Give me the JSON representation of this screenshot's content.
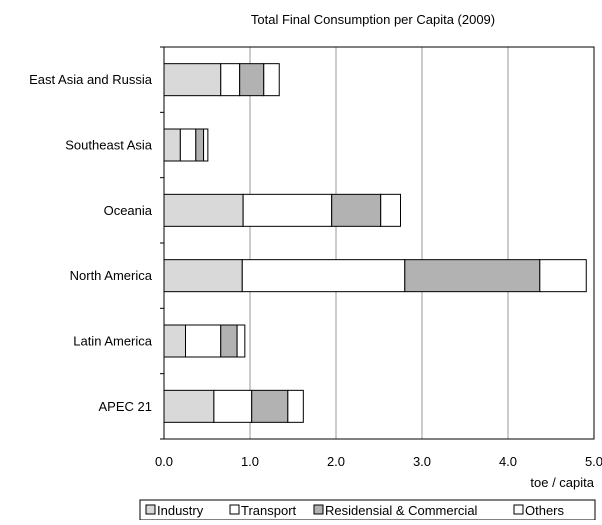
{
  "chart_data": {
    "type": "bar",
    "orientation": "horizontal",
    "stacked": true,
    "title": "Total Final Consumption per Capita (2009)",
    "xlabel": "toe / capita",
    "ylabel": "",
    "xlim": [
      0,
      5
    ],
    "x_ticks": [
      "0.0",
      "1.0",
      "2.0",
      "3.0",
      "4.0",
      "5.0"
    ],
    "grid": "vertical",
    "legend": "bottom",
    "categories": [
      "East Asia and Russia",
      "Southeast Asia",
      "Oceania",
      "North America",
      "Latin America",
      "APEC 21"
    ],
    "series": [
      {
        "name": "Industry",
        "color": "#d9d9d9",
        "values": [
          0.66,
          0.19,
          0.92,
          0.91,
          0.25,
          0.58
        ]
      },
      {
        "name": "Transport",
        "color": "#ffffff",
        "values": [
          0.22,
          0.18,
          1.03,
          1.89,
          0.41,
          0.44
        ]
      },
      {
        "name": "Residensial & Commercial",
        "color": "#b2b2b2",
        "values": [
          0.28,
          0.09,
          0.57,
          1.57,
          0.19,
          0.42
        ]
      },
      {
        "name": "Others",
        "color": "#ffffff",
        "values": [
          0.18,
          0.05,
          0.23,
          0.54,
          0.09,
          0.18
        ]
      }
    ]
  }
}
